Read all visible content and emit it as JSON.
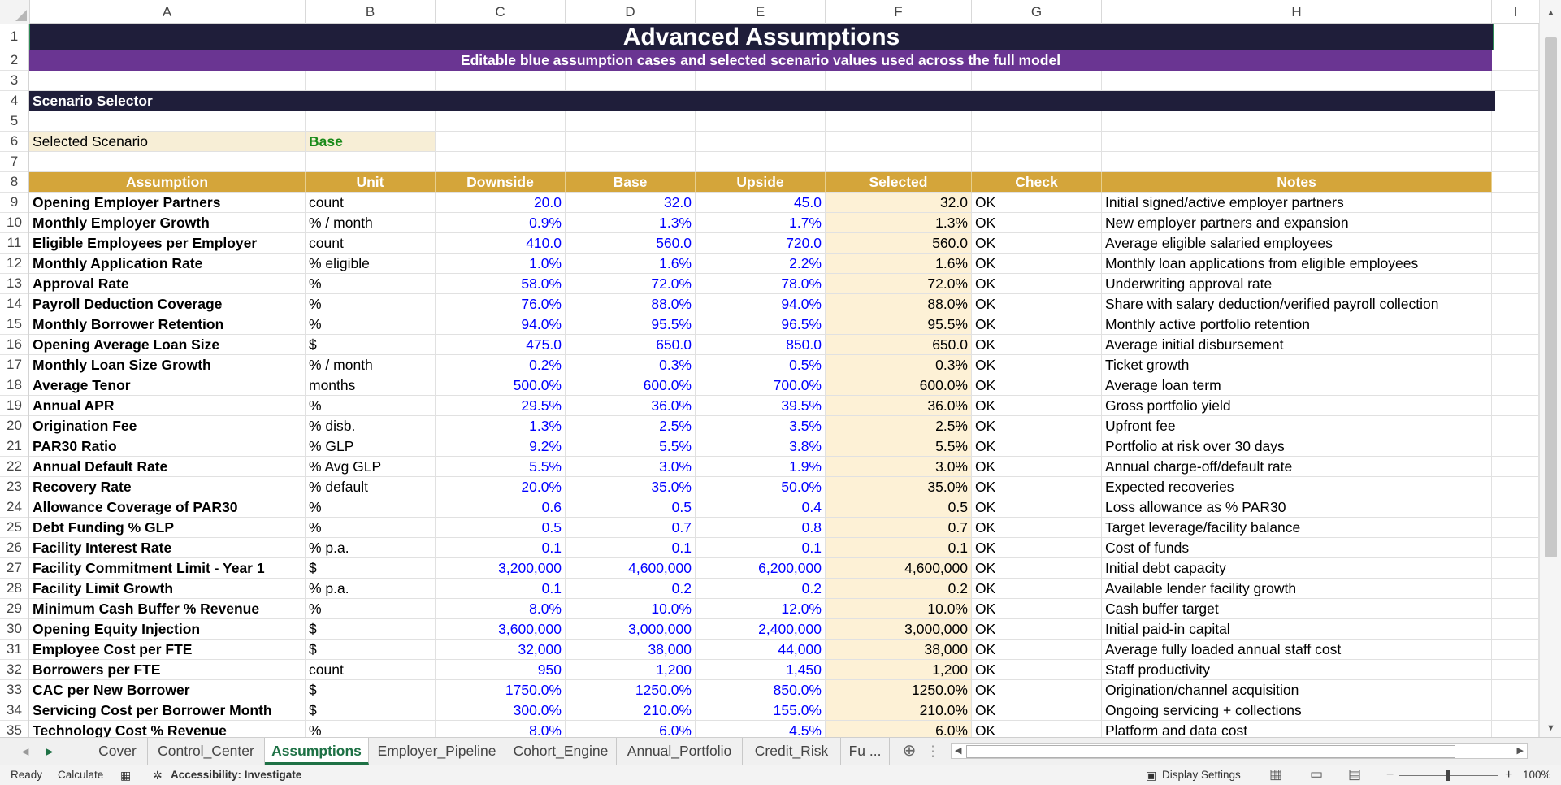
{
  "columns": [
    "A",
    "B",
    "C",
    "D",
    "E",
    "F",
    "G",
    "H"
  ],
  "rows": [
    "1",
    "2",
    "3",
    "4",
    "5",
    "6",
    "7",
    "8",
    "9",
    "10",
    "11",
    "12",
    "13",
    "14",
    "15",
    "16",
    "17",
    "18",
    "19",
    "20",
    "21",
    "22",
    "23",
    "24",
    "25",
    "26",
    "27",
    "28",
    "29",
    "30",
    "31",
    "32",
    "33",
    "34",
    "35"
  ],
  "sheet": {
    "title": "Advanced Assumptions",
    "subtitle": "Editable blue assumption cases and selected scenario values used across the full model",
    "section": "Scenario Selector",
    "selected_label": "Selected Scenario",
    "selected_value": "Base",
    "headers": [
      "Assumption",
      "Unit",
      "Downside",
      "Base",
      "Upside",
      "Selected",
      "Check",
      "Notes"
    ],
    "data": [
      [
        "Opening Employer Partners",
        "count",
        "20.0",
        "32.0",
        "45.0",
        "32.0",
        "OK",
        "Initial signed/active employer partners"
      ],
      [
        "Monthly Employer Growth",
        "% / month",
        "0.9%",
        "1.3%",
        "1.7%",
        "1.3%",
        "OK",
        "New employer partners and expansion"
      ],
      [
        "Eligible Employees per Employer",
        "count",
        "410.0",
        "560.0",
        "720.0",
        "560.0",
        "OK",
        "Average eligible salaried employees"
      ],
      [
        "Monthly Application Rate",
        "% eligible",
        "1.0%",
        "1.6%",
        "2.2%",
        "1.6%",
        "OK",
        "Monthly loan applications from eligible employees"
      ],
      [
        "Approval Rate",
        "%",
        "58.0%",
        "72.0%",
        "78.0%",
        "72.0%",
        "OK",
        "Underwriting approval rate"
      ],
      [
        "Payroll Deduction Coverage",
        "%",
        "76.0%",
        "88.0%",
        "94.0%",
        "88.0%",
        "OK",
        "Share with salary deduction/verified payroll collection"
      ],
      [
        "Monthly Borrower Retention",
        "%",
        "94.0%",
        "95.5%",
        "96.5%",
        "95.5%",
        "OK",
        "Monthly active portfolio retention"
      ],
      [
        "Opening Average Loan Size",
        "$",
        "475.0",
        "650.0",
        "850.0",
        "650.0",
        "OK",
        "Average initial disbursement"
      ],
      [
        "Monthly Loan Size Growth",
        "% / month",
        "0.2%",
        "0.3%",
        "0.5%",
        "0.3%",
        "OK",
        "Ticket growth"
      ],
      [
        "Average Tenor",
        "months",
        "500.0%",
        "600.0%",
        "700.0%",
        "600.0%",
        "OK",
        "Average loan term"
      ],
      [
        "Annual APR",
        "%",
        "29.5%",
        "36.0%",
        "39.5%",
        "36.0%",
        "OK",
        "Gross portfolio yield"
      ],
      [
        "Origination Fee",
        "% disb.",
        "1.3%",
        "2.5%",
        "3.5%",
        "2.5%",
        "OK",
        "Upfront fee"
      ],
      [
        "PAR30 Ratio",
        "% GLP",
        "9.2%",
        "5.5%",
        "3.8%",
        "5.5%",
        "OK",
        "Portfolio at risk over 30 days"
      ],
      [
        "Annual Default Rate",
        "% Avg GLP",
        "5.5%",
        "3.0%",
        "1.9%",
        "3.0%",
        "OK",
        "Annual charge-off/default rate"
      ],
      [
        "Recovery Rate",
        "% default",
        "20.0%",
        "35.0%",
        "50.0%",
        "35.0%",
        "OK",
        "Expected recoveries"
      ],
      [
        "Allowance Coverage of PAR30",
        "%",
        "0.6",
        "0.5",
        "0.4",
        "0.5",
        "OK",
        "Loss allowance as % PAR30"
      ],
      [
        "Debt Funding % GLP",
        "%",
        "0.5",
        "0.7",
        "0.8",
        "0.7",
        "OK",
        "Target leverage/facility balance"
      ],
      [
        "Facility Interest Rate",
        "% p.a.",
        "0.1",
        "0.1",
        "0.1",
        "0.1",
        "OK",
        "Cost of funds"
      ],
      [
        "Facility Commitment Limit - Year 1",
        "$",
        "3,200,000",
        "4,600,000",
        "6,200,000",
        "4,600,000",
        "OK",
        "Initial debt capacity"
      ],
      [
        "Facility Limit Growth",
        "% p.a.",
        "0.1",
        "0.2",
        "0.2",
        "0.2",
        "OK",
        "Available lender facility growth"
      ],
      [
        "Minimum Cash Buffer % Revenue",
        "%",
        "8.0%",
        "10.0%",
        "12.0%",
        "10.0%",
        "OK",
        "Cash buffer target"
      ],
      [
        "Opening Equity Injection",
        "$",
        "3,600,000",
        "3,000,000",
        "2,400,000",
        "3,000,000",
        "OK",
        "Initial paid-in capital"
      ],
      [
        "Employee Cost per FTE",
        "$",
        "32,000",
        "38,000",
        "44,000",
        "38,000",
        "OK",
        "Average fully loaded annual staff cost"
      ],
      [
        "Borrowers per FTE",
        "count",
        "950",
        "1,200",
        "1,450",
        "1,200",
        " OK",
        " Staff productivity"
      ],
      [
        "CAC per New Borrower",
        "$",
        "1750.0%",
        "1250.0%",
        "850.0%",
        "1250.0%",
        "OK",
        "Origination/channel acquisition"
      ],
      [
        "Servicing Cost per Borrower Month",
        "$",
        "300.0%",
        "210.0%",
        "155.0%",
        "210.0%",
        "OK",
        "Ongoing servicing + collections"
      ],
      [
        "Technology Cost % Revenue",
        "%",
        "8.0%",
        "6.0%",
        "4.5%",
        "6.0%",
        "OK",
        "Platform and data cost"
      ]
    ]
  },
  "tabs": [
    "Cover",
    "Control_Center",
    "Assumptions",
    "Employer_Pipeline",
    "Cohort_Engine",
    "Annual_Portfolio",
    "Credit_Risk",
    "Fu ..."
  ],
  "active_tab": "Assumptions",
  "status": {
    "ready": "Ready",
    "calculate": "Calculate",
    "accessibility": "Accessibility: Investigate",
    "display_settings": "Display Settings",
    "zoom": "100%"
  },
  "colors": {
    "title_bg": "#1f1e3a",
    "subtitle_bg": "#6a3592",
    "header_bg": "#d4a53a",
    "input_blue": "#0000ff",
    "selected_bg": "#fdf1d6",
    "active_tab": "#1e7145"
  }
}
